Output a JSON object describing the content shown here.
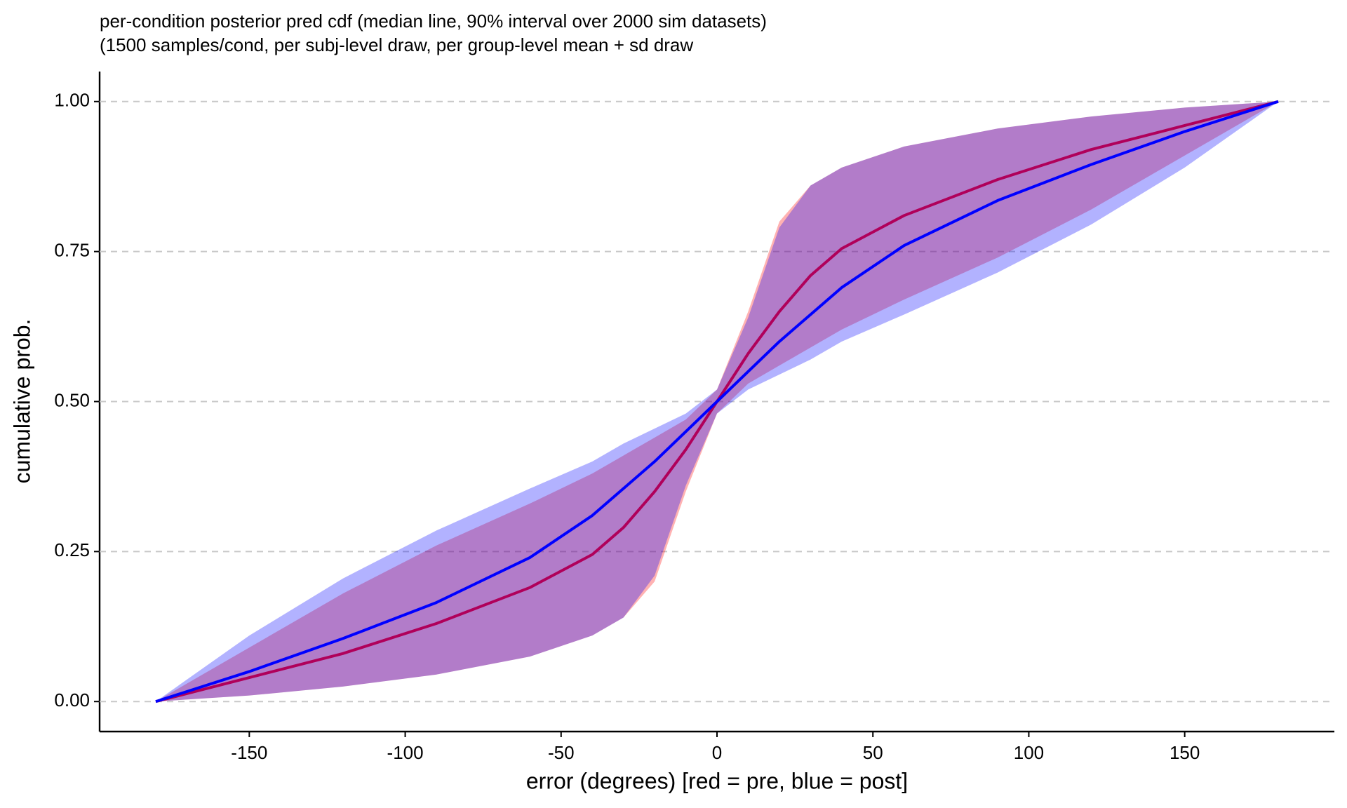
{
  "chart_data": {
    "type": "line",
    "title": "per-condition posterior pred cdf (median line, 90% interval over 2000 sim datasets)",
    "subtitle": "(1500 samples/cond, per subj-level draw, per group-level mean + sd draw",
    "x_label": "error (degrees) [red = pre, blue = post]",
    "y_label": "cumulative prob.",
    "x": [
      -180,
      -150,
      -120,
      -90,
      -60,
      -40,
      -30,
      -20,
      -10,
      0,
      10,
      20,
      30,
      40,
      60,
      90,
      120,
      150,
      180
    ],
    "series": [
      {
        "color": "#b0005a",
        "band_color": "#ff0000",
        "values": [
          0,
          0.04,
          0.08,
          0.13,
          0.19,
          0.245,
          0.29,
          0.35,
          0.42,
          0.5,
          0.58,
          0.65,
          0.71,
          0.755,
          0.81,
          0.87,
          0.92,
          0.96,
          1
        ],
        "lower": [
          0,
          0.01,
          0.025,
          0.045,
          0.075,
          0.11,
          0.14,
          0.2,
          0.35,
          0.48,
          0.53,
          0.56,
          0.59,
          0.62,
          0.67,
          0.74,
          0.82,
          0.91,
          1
        ],
        "upper": [
          0,
          0.09,
          0.18,
          0.26,
          0.33,
          0.38,
          0.41,
          0.44,
          0.47,
          0.52,
          0.65,
          0.8,
          0.86,
          0.89,
          0.925,
          0.955,
          0.975,
          0.99,
          1
        ]
      },
      {
        "color": "#0000ff",
        "band_color": "#0000ff",
        "values": [
          0,
          0.05,
          0.105,
          0.165,
          0.24,
          0.31,
          0.355,
          0.4,
          0.45,
          0.5,
          0.55,
          0.6,
          0.645,
          0.69,
          0.76,
          0.835,
          0.895,
          0.95,
          1
        ],
        "lower": [
          0,
          0.01,
          0.025,
          0.045,
          0.075,
          0.11,
          0.14,
          0.21,
          0.36,
          0.48,
          0.52,
          0.545,
          0.57,
          0.6,
          0.645,
          0.715,
          0.795,
          0.89,
          1
        ],
        "upper": [
          0,
          0.11,
          0.205,
          0.285,
          0.355,
          0.4,
          0.43,
          0.455,
          0.48,
          0.52,
          0.64,
          0.79,
          0.86,
          0.89,
          0.925,
          0.955,
          0.975,
          0.99,
          1
        ]
      }
    ],
    "xlim": [
      -198,
      198
    ],
    "ylim": [
      -0.05,
      1.05
    ],
    "xticks": [
      -150,
      -100,
      -50,
      0,
      50,
      100,
      150
    ],
    "yticks": [
      {
        "value": 0,
        "label": "0.00"
      },
      {
        "value": 0.25,
        "label": "0.25"
      },
      {
        "value": 0.5,
        "label": "0.50"
      },
      {
        "value": 0.75,
        "label": "0.75"
      },
      {
        "value": 1,
        "label": "1.00"
      }
    ],
    "grid": true,
    "band_opacity": 0.3
  }
}
